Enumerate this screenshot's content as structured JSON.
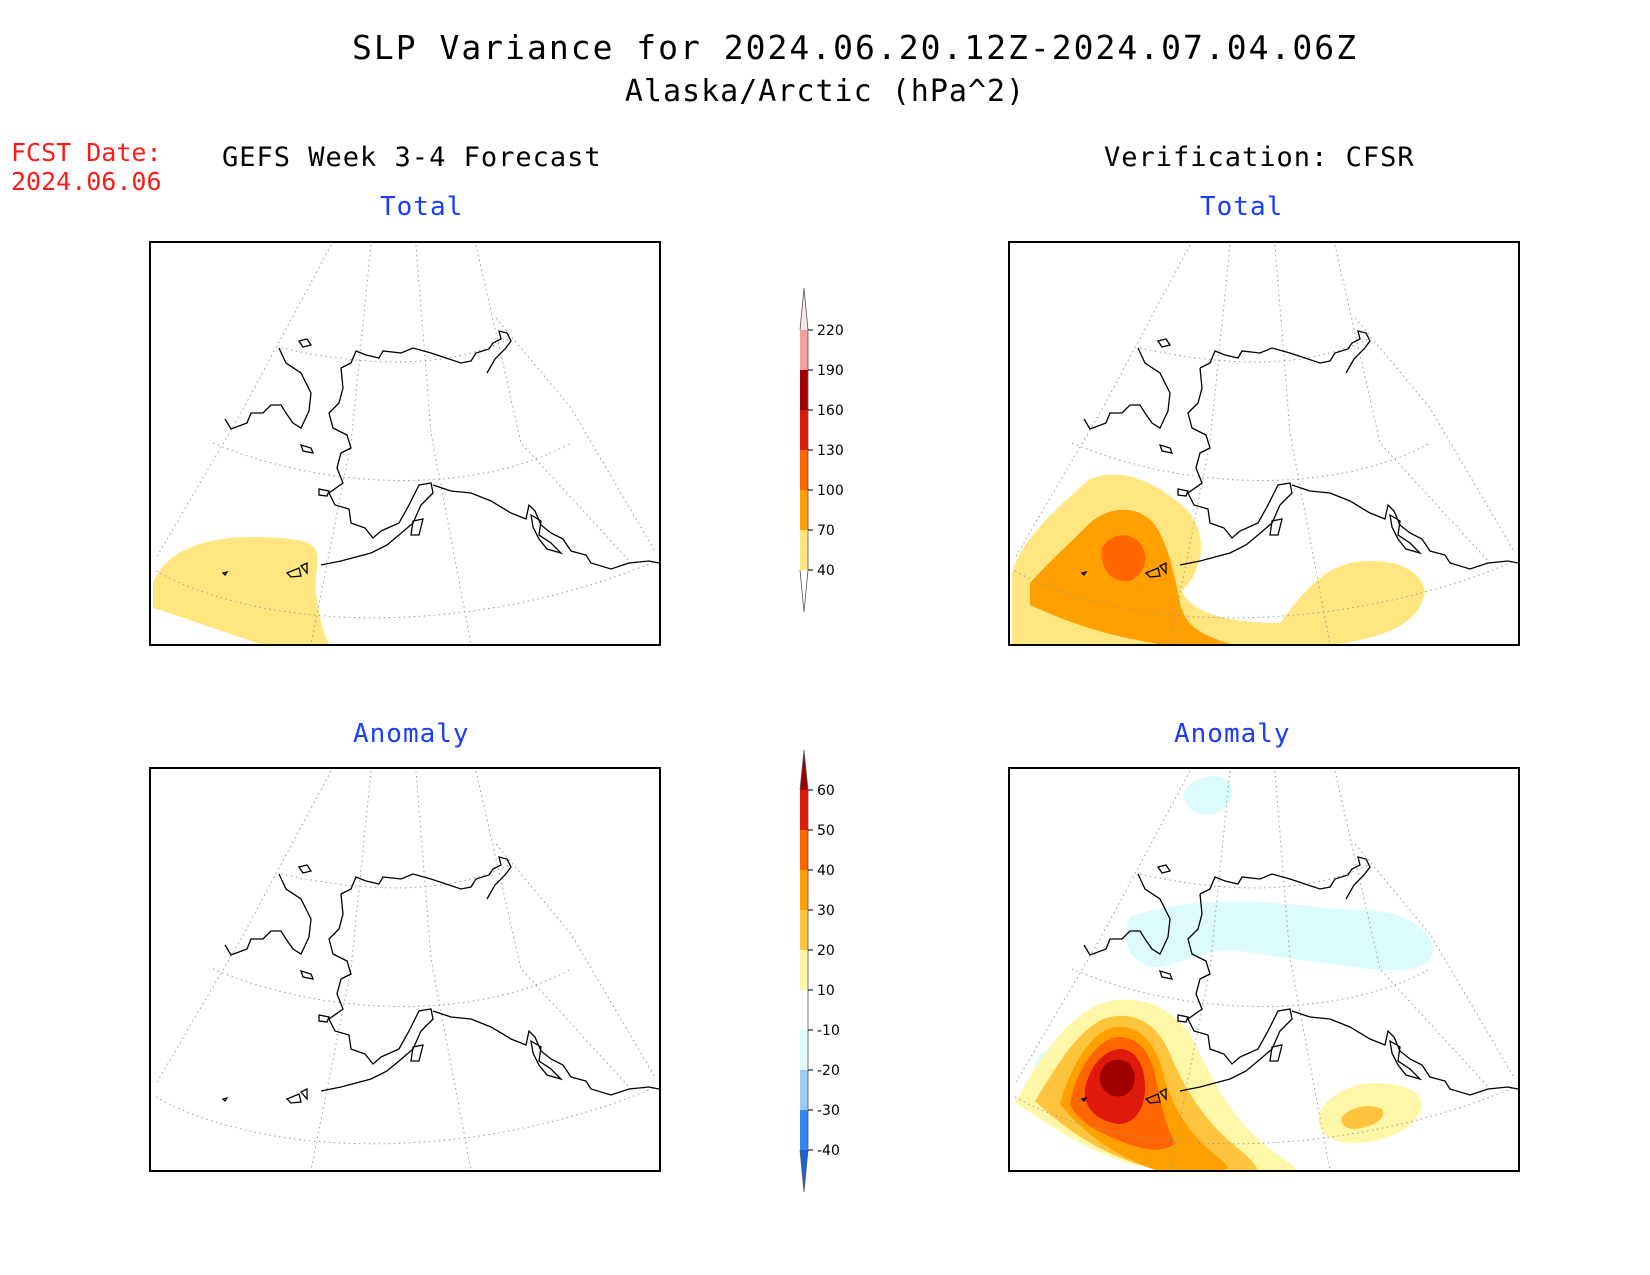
{
  "title": {
    "line1": "SLP Variance for 2024.06.20.12Z-2024.07.04.06Z",
    "line2": "Alaska/Arctic (hPa^2)"
  },
  "fcst_date": {
    "label": "FCST Date:",
    "value": "2024.06.06"
  },
  "columns": {
    "left": "GEFS Week 3-4 Forecast",
    "right": "Verification: CFSR"
  },
  "panels": {
    "top_left": "Total",
    "top_right": "Total",
    "bottom_left": "Anomaly",
    "bottom_right": "Anomaly"
  },
  "colorbars": {
    "total": {
      "levels": [
        "40",
        "70",
        "100",
        "130",
        "160",
        "190",
        "220"
      ],
      "colors": [
        "#ffe680",
        "#ff9f00",
        "#ff6600",
        "#e01a0a",
        "#a00000",
        "#f4a0a0",
        "#fde6e6"
      ]
    },
    "anomaly": {
      "levels": [
        "-40",
        "-30",
        "-20",
        "-10",
        "10",
        "20",
        "30",
        "40",
        "50",
        "60"
      ],
      "colors": [
        "#1565d8",
        "#3388ee",
        "#99ccf5",
        "#dcfcfc",
        "#ffffff",
        "#fff7a8",
        "#ffc43d",
        "#ff9f00",
        "#ff6600",
        "#e01a0a",
        "#a00000"
      ]
    }
  }
}
